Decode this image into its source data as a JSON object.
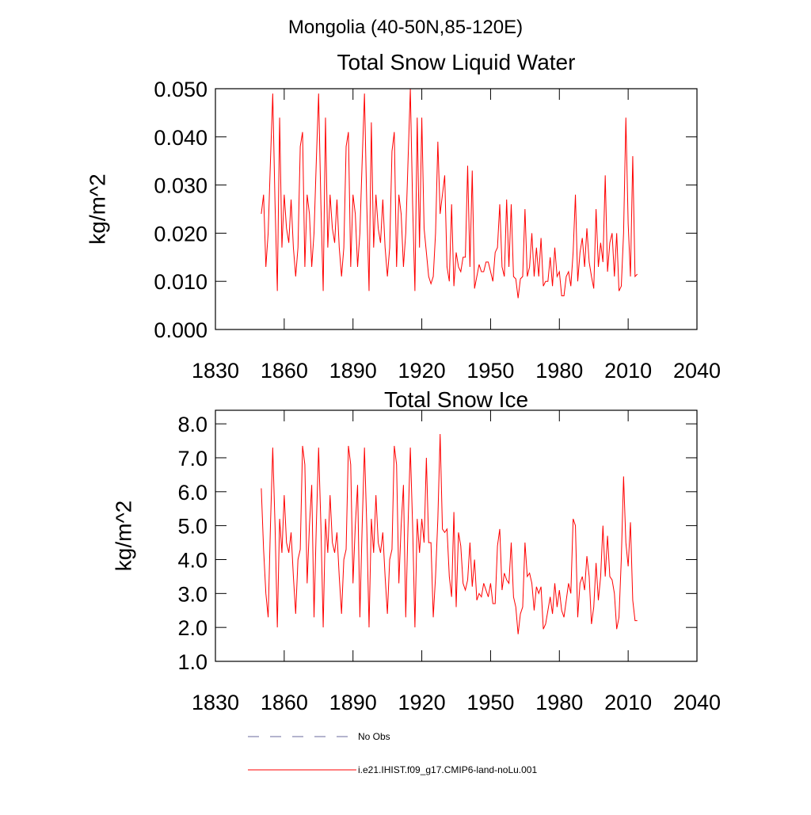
{
  "title": "Mongolia (40-50N,85-120E)",
  "legend": [
    {
      "name": "No Obs",
      "color": "#6a6a9e",
      "dash": true
    }
  ],
  "chart_data": [
    {
      "type": "line",
      "title": "Total Snow Liquid Water",
      "y_label": "kg/m^2",
      "xlim": [
        1830,
        2040
      ],
      "xticks": [
        1830,
        1860,
        1890,
        1920,
        1950,
        1980,
        2010,
        2040
      ],
      "ylim": [
        0,
        0.05
      ],
      "yticks": [
        {
          "value": 0,
          "label": "0.000"
        },
        {
          "value": 0.01,
          "label": "0.010"
        },
        {
          "value": 0.02,
          "label": "0.020"
        },
        {
          "value": 0.03,
          "label": "0.030"
        },
        {
          "value": 0.04,
          "label": "0.040"
        },
        {
          "value": 0.05,
          "label": "0.050"
        }
      ],
      "x": [
        1850,
        1851,
        1852,
        1853,
        1854,
        1855,
        1856,
        1857,
        1858,
        1859,
        1860,
        1861,
        1862,
        1863,
        1864,
        1865,
        1866,
        1867,
        1868,
        1869,
        1870,
        1871,
        1872,
        1873,
        1874,
        1875,
        1876,
        1877,
        1878,
        1879,
        1880,
        1881,
        1882,
        1883,
        1884,
        1885,
        1886,
        1887,
        1888,
        1889,
        1890,
        1891,
        1892,
        1893,
        1894,
        1895,
        1896,
        1897,
        1898,
        1899,
        1900,
        1901,
        1902,
        1903,
        1904,
        1905,
        1906,
        1907,
        1908,
        1909,
        1910,
        1911,
        1912,
        1913,
        1914,
        1915,
        1916,
        1917,
        1918,
        1919,
        1920,
        1921,
        1922,
        1923,
        1924,
        1925,
        1926,
        1927,
        1928,
        1929,
        1930,
        1931,
        1932,
        1933,
        1934,
        1935,
        1936,
        1937,
        1938,
        1939,
        1940,
        1941,
        1942,
        1943,
        1944,
        1945,
        1946,
        1947,
        1948,
        1949,
        1950,
        1951,
        1952,
        1953,
        1954,
        1955,
        1956,
        1957,
        1958,
        1959,
        1960,
        1961,
        1962,
        1963,
        1964,
        1965,
        1966,
        1967,
        1968,
        1969,
        1970,
        1971,
        1972,
        1973,
        1974,
        1975,
        1976,
        1977,
        1978,
        1979,
        1980,
        1981,
        1982,
        1983,
        1984,
        1985,
        1986,
        1987,
        1988,
        1989,
        1990,
        1991,
        1992,
        1993,
        1994,
        1995,
        1996,
        1997,
        1998,
        1999,
        2000,
        2001,
        2002,
        2003,
        2004,
        2005,
        2006,
        2007,
        2008,
        2009,
        2010,
        2011,
        2012,
        2013,
        2014
      ],
      "series": [
        {
          "name": "i.e21.IHIST.f09_g17.CMIP6-land-noLu.001",
          "color": "#ff0000",
          "values": [
            0.024,
            0.028,
            0.013,
            0.02,
            0.035,
            0.049,
            0.026,
            0.008,
            0.044,
            0.017,
            0.028,
            0.021,
            0.018,
            0.027,
            0.017,
            0.011,
            0.017,
            0.038,
            0.041,
            0.013,
            0.028,
            0.024,
            0.013,
            0.02,
            0.035,
            0.049,
            0.026,
            0.008,
            0.044,
            0.017,
            0.028,
            0.021,
            0.018,
            0.027,
            0.017,
            0.011,
            0.017,
            0.038,
            0.041,
            0.013,
            0.028,
            0.024,
            0.013,
            0.02,
            0.035,
            0.049,
            0.026,
            0.008,
            0.043,
            0.017,
            0.028,
            0.021,
            0.018,
            0.027,
            0.017,
            0.011,
            0.017,
            0.037,
            0.041,
            0.013,
            0.028,
            0.024,
            0.013,
            0.02,
            0.035,
            0.05,
            0.026,
            0.008,
            0.044,
            0.017,
            0.044,
            0.021,
            0.016,
            0.011,
            0.0095,
            0.011,
            0.02,
            0.039,
            0.024,
            0.028,
            0.032,
            0.013,
            0.01,
            0.026,
            0.009,
            0.016,
            0.013,
            0.012,
            0.015,
            0.015,
            0.034,
            0.013,
            0.033,
            0.0085,
            0.011,
            0.0135,
            0.012,
            0.012,
            0.014,
            0.014,
            0.012,
            0.01,
            0.016,
            0.017,
            0.026,
            0.013,
            0.011,
            0.027,
            0.013,
            0.026,
            0.011,
            0.0105,
            0.0065,
            0.0105,
            0.011,
            0.025,
            0.011,
            0.013,
            0.02,
            0.011,
            0.017,
            0.011,
            0.019,
            0.009,
            0.01,
            0.01,
            0.015,
            0.009,
            0.017,
            0.011,
            0.012,
            0.007,
            0.007,
            0.011,
            0.012,
            0.009,
            0.016,
            0.028,
            0.01,
            0.016,
            0.019,
            0.013,
            0.021,
            0.014,
            0.011,
            0.0085,
            0.025,
            0.013,
            0.018,
            0.014,
            0.032,
            0.012,
            0.018,
            0.02,
            0.011,
            0.02,
            0.008,
            0.009,
            0.02,
            0.044,
            0.022,
            0.011,
            0.036,
            0.011,
            0.0115
          ]
        }
      ]
    },
    {
      "type": "line",
      "title": "Total Snow Ice",
      "y_label": "kg/m^2",
      "xlim": [
        1830,
        2040
      ],
      "xticks": [
        1830,
        1860,
        1890,
        1920,
        1950,
        1980,
        2010,
        2040
      ],
      "ylim": [
        1.0,
        8.4
      ],
      "yticks": [
        {
          "value": 1,
          "label": "1.0"
        },
        {
          "value": 2,
          "label": "2.0"
        },
        {
          "value": 3,
          "label": "3.0"
        },
        {
          "value": 4,
          "label": "4.0"
        },
        {
          "value": 5,
          "label": "5.0"
        },
        {
          "value": 6,
          "label": "6.0"
        },
        {
          "value": 7,
          "label": "7.0"
        },
        {
          "value": 8,
          "label": "8.0"
        }
      ],
      "x": [
        1850,
        1851,
        1852,
        1853,
        1854,
        1855,
        1856,
        1857,
        1858,
        1859,
        1860,
        1861,
        1862,
        1863,
        1864,
        1865,
        1866,
        1867,
        1868,
        1869,
        1870,
        1871,
        1872,
        1873,
        1874,
        1875,
        1876,
        1877,
        1878,
        1879,
        1880,
        1881,
        1882,
        1883,
        1884,
        1885,
        1886,
        1887,
        1888,
        1889,
        1890,
        1891,
        1892,
        1893,
        1894,
        1895,
        1896,
        1897,
        1898,
        1899,
        1900,
        1901,
        1902,
        1903,
        1904,
        1905,
        1906,
        1907,
        1908,
        1909,
        1910,
        1911,
        1912,
        1913,
        1914,
        1915,
        1916,
        1917,
        1918,
        1919,
        1920,
        1921,
        1922,
        1923,
        1924,
        1925,
        1926,
        1927,
        1928,
        1929,
        1930,
        1931,
        1932,
        1933,
        1934,
        1935,
        1936,
        1937,
        1938,
        1939,
        1940,
        1941,
        1942,
        1943,
        1944,
        1945,
        1946,
        1947,
        1948,
        1949,
        1950,
        1951,
        1952,
        1953,
        1954,
        1955,
        1956,
        1957,
        1958,
        1959,
        1960,
        1961,
        1962,
        1963,
        1964,
        1965,
        1966,
        1967,
        1968,
        1969,
        1970,
        1971,
        1972,
        1973,
        1974,
        1975,
        1976,
        1977,
        1978,
        1979,
        1980,
        1981,
        1982,
        1983,
        1984,
        1985,
        1986,
        1987,
        1988,
        1989,
        1990,
        1991,
        1992,
        1993,
        1994,
        1995,
        1996,
        1997,
        1998,
        1999,
        2000,
        2001,
        2002,
        2003,
        2004,
        2005,
        2006,
        2007,
        2008,
        2009,
        2010,
        2011,
        2012,
        2013,
        2014
      ],
      "series": [
        {
          "color": "#ff0000",
          "values": [
            6.1,
            4.3,
            3.0,
            2.3,
            5.0,
            7.3,
            5.0,
            2.0,
            5.2,
            4.2,
            5.9,
            4.5,
            4.2,
            4.8,
            3.5,
            2.4,
            4.0,
            4.3,
            7.35,
            6.8,
            3.3,
            5.0,
            6.2,
            2.3,
            5.0,
            7.3,
            5.0,
            2.0,
            5.2,
            4.2,
            5.9,
            4.5,
            4.2,
            4.8,
            3.5,
            2.4,
            4.0,
            4.3,
            7.35,
            6.8,
            3.3,
            5.0,
            6.2,
            2.3,
            5.0,
            7.3,
            5.0,
            2.0,
            5.2,
            4.2,
            5.9,
            4.5,
            4.2,
            4.8,
            3.5,
            2.4,
            4.0,
            4.3,
            7.35,
            6.8,
            3.3,
            5.0,
            6.2,
            2.3,
            5.0,
            7.3,
            5.0,
            2.0,
            5.2,
            4.2,
            5.2,
            4.5,
            7.0,
            4.5,
            4.5,
            2.3,
            3.5,
            5.2,
            7.7,
            4.9,
            4.8,
            4.9,
            3.5,
            2.9,
            5.4,
            2.6,
            4.8,
            4.4,
            3.3,
            3.1,
            3.4,
            4.5,
            3.2,
            4.0,
            2.8,
            3.0,
            2.9,
            3.3,
            3.1,
            2.9,
            3.3,
            2.7,
            2.7,
            4.4,
            4.9,
            3.1,
            3.6,
            3.4,
            3.3,
            4.5,
            2.9,
            2.6,
            1.8,
            2.4,
            2.6,
            4.5,
            3.5,
            3.6,
            3.3,
            2.5,
            3.2,
            3.0,
            3.2,
            1.95,
            2.1,
            2.5,
            2.9,
            2.4,
            3.3,
            2.6,
            3.1,
            2.5,
            2.3,
            2.8,
            3.3,
            3.0,
            5.2,
            5.0,
            2.3,
            3.3,
            3.5,
            3.1,
            4.1,
            3.5,
            2.1,
            2.6,
            3.9,
            2.8,
            3.5,
            5.0,
            3.5,
            4.7,
            3.5,
            3.4,
            3.0,
            1.95,
            2.3,
            4.0,
            6.45,
            4.5,
            3.8,
            5.1,
            2.8,
            2.2,
            2.2
          ]
        }
      ]
    }
  ]
}
